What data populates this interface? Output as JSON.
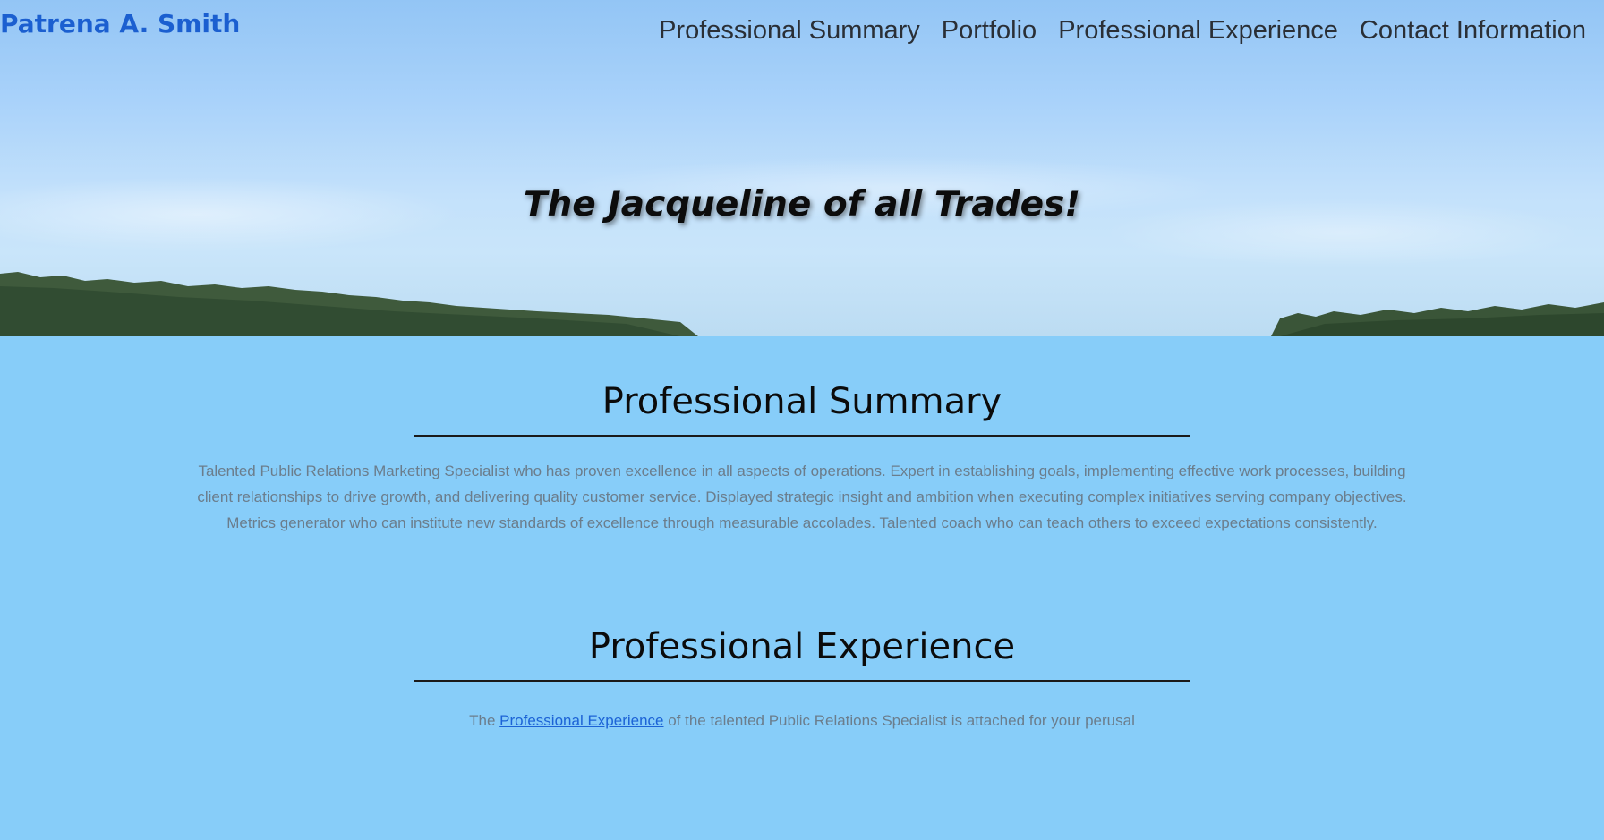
{
  "header": {
    "brand": "Patrena A. Smith",
    "nav": [
      {
        "label": "Professional Summary"
      },
      {
        "label": "Portfolio"
      },
      {
        "label": "Professional Experience"
      },
      {
        "label": "Contact Information"
      }
    ],
    "tagline": "The Jacqueline of all Trades!"
  },
  "summary": {
    "title": "Professional Summary",
    "body": "Talented Public Relations Marketing Specialist who has proven excellence in all aspects of operations. Expert in establishing goals, implementing effective work processes, building client relationships to drive growth, and delivering quality customer service. Displayed strategic insight and ambition when executing complex initiatives serving company objectives. Metrics generator who can institute new standards of excellence through measurable accolades. Talented coach who can teach others to exceed expectations consistently."
  },
  "experience": {
    "title": "Professional Experience",
    "text_before": "The ",
    "link_label": "Professional Experience",
    "text_after": " of the talented Public Relations Specialist is attached for your perusal"
  },
  "colors": {
    "brand": "#1b5fd0",
    "background": "#87cdf9",
    "link": "#1c63d6"
  }
}
